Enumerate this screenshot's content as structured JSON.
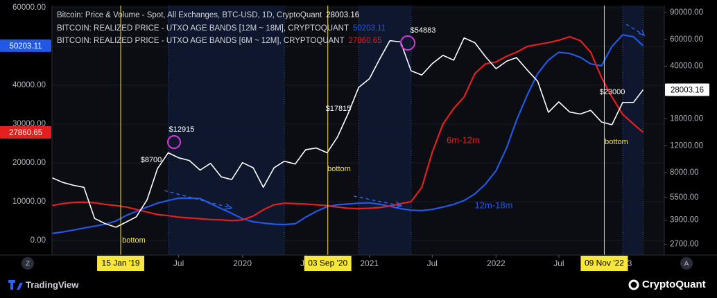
{
  "chart_data": {
    "type": "line",
    "x": [
      "2018-07",
      "2018-08",
      "2018-09",
      "2018-10",
      "2018-11",
      "2018-12",
      "2019-01",
      "2019-02",
      "2019-03",
      "2019-04",
      "2019-05",
      "2019-06",
      "2019-07",
      "2019-08",
      "2019-09",
      "2019-10",
      "2019-11",
      "2019-12",
      "2020-01",
      "2020-02",
      "2020-03",
      "2020-04",
      "2020-05",
      "2020-06",
      "2020-07",
      "2020-08",
      "2020-09",
      "2020-10",
      "2020-11",
      "2020-12",
      "2021-01",
      "2021-02",
      "2021-03",
      "2021-04",
      "2021-05",
      "2021-06",
      "2021-07",
      "2021-08",
      "2021-09",
      "2021-10",
      "2021-11",
      "2021-12",
      "2022-01",
      "2022-02",
      "2022-03",
      "2022-04",
      "2022-05",
      "2022-06",
      "2022-07",
      "2022-08",
      "2022-09",
      "2022-10",
      "2022-11",
      "2022-12",
      "2023-01",
      "2023-02",
      "2023-03"
    ],
    "xlim": [
      "2018-07",
      "2023-05"
    ],
    "xticks": [
      {
        "value": "2019-07",
        "label": "Jul"
      },
      {
        "value": "2020-01",
        "label": "2020"
      },
      {
        "value": "2020-07",
        "label": "Jul"
      },
      {
        "value": "2021-01",
        "label": "2021"
      },
      {
        "value": "2021-07",
        "label": "Jul"
      },
      {
        "value": "2022-01",
        "label": "2022"
      },
      {
        "value": "2022-07",
        "label": "Jul"
      },
      {
        "value": "2023-01",
        "label": "2023"
      }
    ],
    "ylim": [
      -3750,
      60540
    ],
    "yticks": [
      {
        "value": 0,
        "label": "0.00"
      },
      {
        "value": 10000,
        "label": "10000.00"
      },
      {
        "value": 20000,
        "label": "20000.00"
      },
      {
        "value": 30000,
        "label": "30000.00"
      },
      {
        "value": 40000,
        "label": "40000.00"
      },
      {
        "value": 50000,
        "label": "50000.00"
      },
      {
        "value": 60000,
        "label": "60000.00"
      }
    ],
    "y2lim": [
      2300,
      100000
    ],
    "y2scale": "log",
    "y2ticks": [
      {
        "value": 2700,
        "label": "2700.00"
      },
      {
        "value": 3900,
        "label": "3900.00"
      },
      {
        "value": 5500,
        "label": "5500.00"
      },
      {
        "value": 8000,
        "label": "8000.00"
      },
      {
        "value": 12000,
        "label": "12000.00"
      },
      {
        "value": 18000,
        "label": "18000.00"
      },
      {
        "value": 40000,
        "label": "40000.00"
      },
      {
        "value": 60000,
        "label": "60000.00"
      },
      {
        "value": 90000,
        "label": "90000.00"
      }
    ],
    "grid": true,
    "series": [
      {
        "name": "Bitcoin: Price & Volume - Spot, All Exchanges, BTC-USD, 1D, CryptoQuant",
        "color": "#ffffff",
        "axis": "y2",
        "values": [
          7400,
          6900,
          6600,
          6400,
          4000,
          3700,
          3500,
          3800,
          4100,
          5300,
          8500,
          10800,
          10000,
          9600,
          8300,
          9200,
          7500,
          7200,
          9300,
          8600,
          6400,
          8600,
          9500,
          9100,
          11300,
          11600,
          10800,
          13700,
          19600,
          29000,
          33100,
          45200,
          58800,
          57700,
          37300,
          35000,
          41500,
          47100,
          43800,
          61300,
          57000,
          46300,
          38500,
          43200,
          45500,
          37700,
          31800,
          19900,
          23300,
          20000,
          19400,
          20500,
          17200,
          16500,
          23100,
          23100,
          28003.16
        ]
      },
      {
        "name": "BITCOIN: REALIZED PRICE - UTXO AGE BANDS [12M ~ 18M], CRYPTOQUANT",
        "color": "#2158e6",
        "values": [
          1800,
          2200,
          2700,
          3200,
          3700,
          4200,
          5000,
          6500,
          7500,
          8600,
          9600,
          10300,
          10900,
          10900,
          10800,
          9500,
          8200,
          7000,
          5600,
          4800,
          4500,
          4200,
          4100,
          4300,
          6000,
          7500,
          8700,
          9200,
          9400,
          9600,
          9700,
          9300,
          8800,
          8200,
          7800,
          7700,
          8000,
          8600,
          9300,
          10300,
          12000,
          14500,
          18000,
          24000,
          31000,
          37500,
          43000,
          46500,
          48500,
          48200,
          47200,
          45500,
          45000,
          50000,
          53000,
          52500,
          50203.11
        ]
      },
      {
        "name": "BITCOIN: REALIZED PRICE - UTXO AGE BANDS [6M ~ 12M], CRYPTOQUANT",
        "color": "#e51f1f",
        "values": [
          9000,
          9500,
          9800,
          9900,
          9700,
          9300,
          9000,
          8600,
          8000,
          7300,
          6700,
          6400,
          6000,
          5800,
          5600,
          5400,
          5300,
          5100,
          5300,
          6300,
          7900,
          9200,
          9600,
          9500,
          9400,
          9200,
          9000,
          8600,
          8300,
          8200,
          8300,
          8500,
          8900,
          9500,
          10000,
          13700,
          22700,
          30000,
          34000,
          37000,
          43000,
          45500,
          46000,
          47500,
          48500,
          50000,
          50500,
          51000,
          51600,
          52500,
          51500,
          48500,
          42000,
          37000,
          32500,
          30000,
          27860.65
        ]
      }
    ],
    "markers": [
      {
        "x": "2019-01-15",
        "label": "15 Jan '19"
      },
      {
        "x": "2020-09-03",
        "label": "03 Sep '20"
      },
      {
        "x": "2022-11-09",
        "label": "09 Nov '22"
      }
    ],
    "marker_color": "#f7e63b",
    "shaded_ranges": [
      {
        "from": "2019-06",
        "to": "2020-05"
      },
      {
        "from": "2020-12",
        "to": "2021-05"
      },
      {
        "from": "2023-01",
        "to": "2023-03"
      }
    ],
    "annotations": [
      "$12915",
      "$8700",
      "$17815",
      "$54883",
      "$23000",
      "bottom",
      "bottom",
      "bottom",
      "6m-12m",
      "12m-18m"
    ]
  },
  "axis_buttons": [
    "Z",
    "A"
  ],
  "footer": {
    "left_brand": "TradingView",
    "right_brand": "CryptoQuant"
  }
}
